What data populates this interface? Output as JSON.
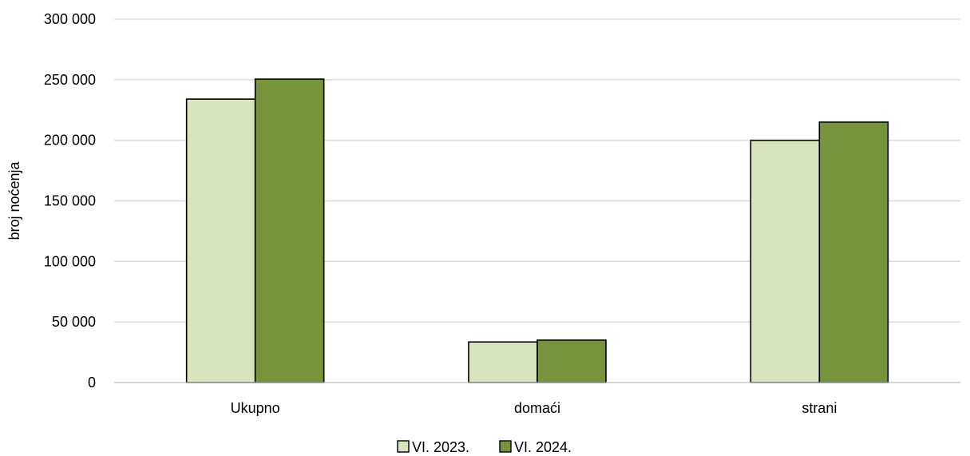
{
  "chart_data": {
    "type": "bar",
    "title": "",
    "xlabel": "",
    "ylabel": "broj noćenja",
    "ylim": [
      0,
      300000
    ],
    "yticks": [
      0,
      50000,
      100000,
      150000,
      200000,
      250000,
      300000
    ],
    "ytick_labels": [
      "0",
      "50 000",
      "100 000",
      "150 000",
      "200 000",
      "250 000",
      "300 000"
    ],
    "categories": [
      "Ukupno",
      "domaći",
      "strani"
    ],
    "series": [
      {
        "name": "VI. 2023.",
        "values": [
          234000,
          33500,
          200000
        ],
        "color": "#d8e4bc"
      },
      {
        "name": "VI. 2024.",
        "values": [
          250500,
          35000,
          215000
        ],
        "color": "#77933c"
      }
    ],
    "grid": true,
    "legend_position": "bottom"
  }
}
